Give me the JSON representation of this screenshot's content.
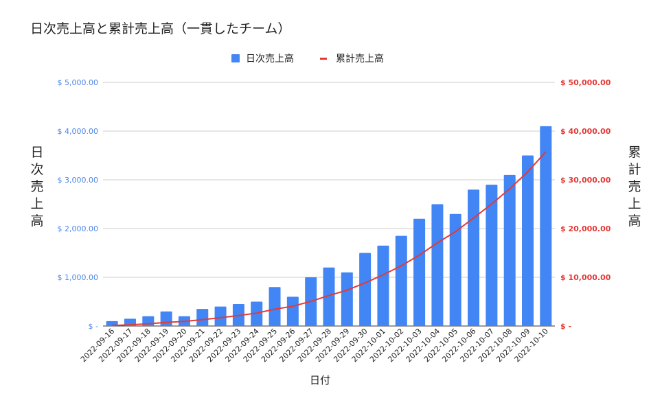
{
  "chart_data": {
    "type": "bar",
    "title": "日次売上高と累計売上高（一貫したチーム）",
    "xlabel": "日付",
    "ylabel": "日次売上高",
    "y2label": "累計売上高",
    "legend_position": "top-center",
    "grid": true,
    "categories": [
      "2022-09-16",
      "2022-09-17",
      "2022-09-18",
      "2022-09-19",
      "2022-09-20",
      "2022-09-21",
      "2022-09-22",
      "2022-09-23",
      "2022-09-24",
      "2022-09-25",
      "2022-09-26",
      "2022-09-27",
      "2022-09-28",
      "2022-09-29",
      "2022-09-30",
      "2022-10-01",
      "2022-10-02",
      "2022-10-03",
      "2022-10-04",
      "2022-10-05",
      "2022-10-06",
      "2022-10-07",
      "2022-10-08",
      "2022-10-09",
      "2022-10-10"
    ],
    "ylim": [
      0,
      5000
    ],
    "y2lim": [
      0,
      50000
    ],
    "y_ticks": [
      "$ -",
      "$ 1,000.00",
      "$ 2,000.00",
      "$ 3,000.00",
      "$ 4,000.00",
      "$ 5,000.00"
    ],
    "y2_ticks": [
      "$ -",
      "$ 10,000.00",
      "$ 20,000.00",
      "$ 30,000.00",
      "$ 40,000.00",
      "$ 50,000.00"
    ],
    "series": [
      {
        "name": "日次売上高",
        "type": "bar",
        "axis": "left",
        "color": "#4285f4",
        "values": [
          100,
          150,
          200,
          300,
          200,
          350,
          400,
          450,
          500,
          800,
          600,
          1000,
          1200,
          1100,
          1500,
          1650,
          1850,
          2200,
          2500,
          2300,
          2800,
          2900,
          3100,
          3500,
          4100
        ]
      },
      {
        "name": "累計売上高",
        "type": "line",
        "axis": "right",
        "color": "#e53935",
        "values": [
          100,
          250,
          450,
          750,
          950,
          1300,
          1700,
          2150,
          2650,
          3450,
          4050,
          5050,
          6250,
          7350,
          8850,
          10500,
          12350,
          14550,
          17050,
          19350,
          22150,
          25050,
          28150,
          31650,
          35750
        ]
      }
    ]
  }
}
